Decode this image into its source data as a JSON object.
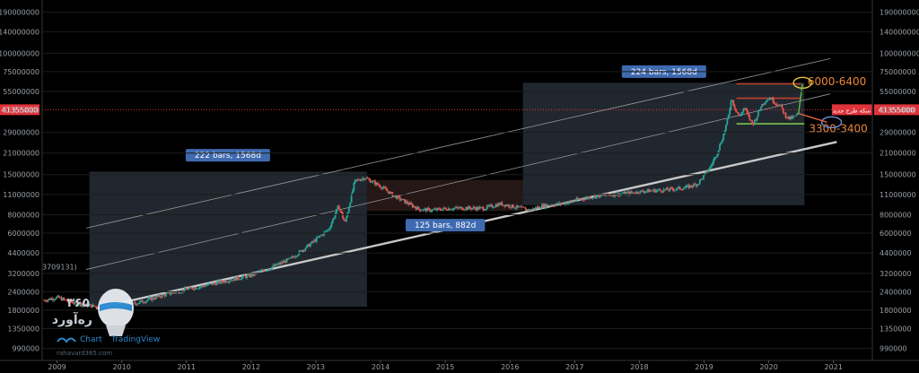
{
  "chart_data": {
    "type": "line",
    "y_scale": "log",
    "y_ticks": [
      "190000000",
      "140000000",
      "100000000",
      "75000000",
      "55000000",
      "41355000",
      "29000000",
      "21000000",
      "15000000",
      "11000000",
      "8000000",
      "6000000",
      "4400000",
      "3200000",
      "2400000",
      "1800000",
      "1350000",
      "990000"
    ],
    "y_tick_values": [
      190000000,
      140000000,
      100000000,
      75000000,
      55000000,
      41355000,
      29000000,
      21000000,
      15000000,
      11000000,
      8000000,
      6000000,
      4400000,
      3200000,
      2400000,
      1800000,
      1350000,
      990000
    ],
    "x_ticks": [
      "2009",
      "2010",
      "2011",
      "2012",
      "2013",
      "2014",
      "2015",
      "2016",
      "2017",
      "2018",
      "2019",
      "2020",
      "2021"
    ],
    "x_tick_values": [
      2009,
      2010,
      2011,
      2012,
      2013,
      2014,
      2015,
      2016,
      2017,
      2018,
      2019,
      2020,
      2021
    ],
    "x_range": [
      2008.77,
      2021.6
    ],
    "y_range": [
      820000,
      230000000
    ],
    "series_points": [
      [
        2008.8,
        2100000
      ],
      [
        2009.0,
        2200000
      ],
      [
        2009.2,
        2050000
      ],
      [
        2009.45,
        1950000
      ],
      [
        2009.7,
        1880000
      ],
      [
        2010.0,
        1900000
      ],
      [
        2010.3,
        2050000
      ],
      [
        2010.6,
        2250000
      ],
      [
        2011.0,
        2500000
      ],
      [
        2011.3,
        2650000
      ],
      [
        2011.6,
        2850000
      ],
      [
        2012.0,
        3100000
      ],
      [
        2012.3,
        3500000
      ],
      [
        2012.6,
        4000000
      ],
      [
        2012.9,
        5000000
      ],
      [
        2013.2,
        6400000
      ],
      [
        2013.35,
        9200000
      ],
      [
        2013.45,
        7000000
      ],
      [
        2013.6,
        13500000
      ],
      [
        2013.75,
        14300000
      ],
      [
        2013.85,
        13600000
      ],
      [
        2014.0,
        12500000
      ],
      [
        2014.2,
        10800000
      ],
      [
        2014.4,
        9700000
      ],
      [
        2014.6,
        8700000
      ],
      [
        2014.8,
        8600000
      ],
      [
        2015.0,
        8800000
      ],
      [
        2015.3,
        8900000
      ],
      [
        2015.6,
        8850000
      ],
      [
        2015.85,
        9500000
      ],
      [
        2016.1,
        9000000
      ],
      [
        2016.3,
        8600000
      ],
      [
        2016.5,
        9200000
      ],
      [
        2016.8,
        9500000
      ],
      [
        2017.0,
        10000000
      ],
      [
        2017.3,
        10700000
      ],
      [
        2017.6,
        11000000
      ],
      [
        2017.9,
        11300000
      ],
      [
        2018.1,
        11600000
      ],
      [
        2018.4,
        11800000
      ],
      [
        2018.7,
        12200000
      ],
      [
        2018.9,
        13000000
      ],
      [
        2019.0,
        14800000
      ],
      [
        2019.1,
        17000000
      ],
      [
        2019.2,
        21000000
      ],
      [
        2019.3,
        28000000
      ],
      [
        2019.38,
        38000000
      ],
      [
        2019.42,
        50000000
      ],
      [
        2019.48,
        42000000
      ],
      [
        2019.55,
        37000000
      ],
      [
        2019.62,
        43000000
      ],
      [
        2019.7,
        36000000
      ],
      [
        2019.75,
        33000000
      ],
      [
        2019.8,
        36000000
      ],
      [
        2019.88,
        44000000
      ],
      [
        2019.95,
        48000000
      ],
      [
        2020.02,
        50000000
      ],
      [
        2020.1,
        46000000
      ],
      [
        2020.18,
        44000000
      ],
      [
        2020.25,
        38000000
      ],
      [
        2020.32,
        36000000
      ],
      [
        2020.4,
        37000000
      ],
      [
        2020.46,
        39000000
      ]
    ],
    "trendlines": [
      {
        "points": [
          [
            2009.6,
            1850000
          ],
          [
            2021.05,
            25000000
          ]
        ],
        "color": "#c8c8c8",
        "width": 2.4
      },
      {
        "points": [
          [
            2009.45,
            3400000
          ],
          [
            2020.95,
            53000000
          ]
        ],
        "color": "#9a9a9a",
        "width": 0.8
      },
      {
        "points": [
          [
            2009.45,
            6500000
          ],
          [
            2020.95,
            92000000
          ]
        ],
        "color": "#9a9a9a",
        "width": 0.8
      }
    ],
    "measure_boxes": [
      {
        "x0": 2009.5,
        "x1": 2013.79,
        "y0": 1900000,
        "y1": 15700000,
        "fill": "rgba(120,140,170,0.28)",
        "label": "222 bars, 1568d",
        "label_x": 2011.64,
        "label_y": 20300000
      },
      {
        "x0": 2013.79,
        "x1": 2016.2,
        "y0": 8500000,
        "y1": 13800000,
        "fill": "rgba(150,90,90,0.25)",
        "label": "125 bars, 882d",
        "label_x": 2015.0,
        "label_y": 6800000
      },
      {
        "x0": 2016.2,
        "x1": 2020.55,
        "y0": 9300000,
        "y1": 63000000,
        "fill": "rgba(120,140,170,0.28)",
        "label": "224 bars, 1568d",
        "label_x": 2018.38,
        "label_y": 75000000
      }
    ],
    "hlines": [
      {
        "y": 41355000,
        "color": "#e0333a",
        "style": "dotted",
        "label": "41355000"
      },
      {
        "y": 62000000,
        "color": "#c2402c",
        "x0": 2019.5,
        "x1": 2020.5
      },
      {
        "y": 49500000,
        "color": "#c2402c",
        "x0": 2019.5,
        "x1": 2020.5
      },
      {
        "y": 33200000,
        "color": "#7cc24c",
        "x0": 2019.5,
        "x1": 2020.55
      }
    ],
    "zone_labels": [
      {
        "text": "6000-6400",
        "x": 2020.6,
        "y": 64000000,
        "color": "#e8873a"
      },
      {
        "text": "3300-3400",
        "x": 2020.62,
        "y": 30700000,
        "color": "#e8873a"
      }
    ],
    "side_labels": [
      {
        "text": "3709131)",
        "x": 2008.77,
        "y": 3400000,
        "color": "#ffffff"
      }
    ],
    "ellipses": [
      {
        "x": 2020.52,
        "y": 63000000,
        "rx": 10,
        "ry": 6,
        "color": "#e8c33a"
      },
      {
        "x": 2020.97,
        "y": 34000000,
        "rx": 11,
        "ry": 6,
        "color": "#6e8fd0"
      }
    ],
    "price_tag": {
      "text": "41355000",
      "bg": "#e0333a"
    },
    "price_tag_left": {
      "text": "سکه طرح جدید",
      "bg": "#e0333a"
    },
    "colors": {
      "up": "#26a69a",
      "down": "#ef5350",
      "bg": "#000000",
      "grid": "#1c1c1c"
    },
    "watermark": {
      "brand_num": "۳۶۵",
      "brand_name": "ره‌آورد",
      "chart_word": "Chart",
      "tv_word": "TradingView",
      "site": "rahavard365.com"
    }
  }
}
